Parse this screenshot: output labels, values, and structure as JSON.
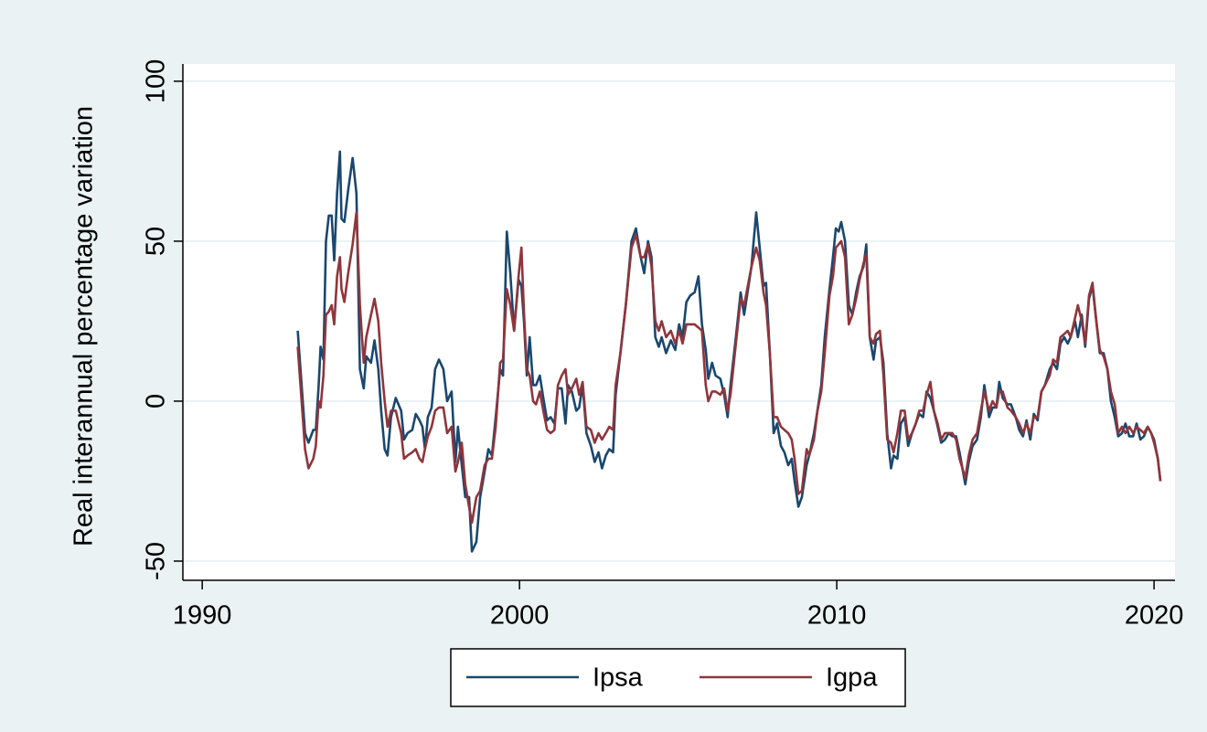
{
  "chart_data": {
    "type": "line",
    "y_label": "Real interannual percentage variation",
    "x": [
      1993.01,
      1993.24,
      1993.35,
      1993.5,
      1993.58,
      1993.67,
      1993.73,
      1993.82,
      1993.9,
      1993.99,
      1994.08,
      1994.16,
      1994.25,
      1994.34,
      1994.39,
      1994.48,
      1994.6,
      1994.74,
      1994.86,
      1994.97,
      1995.09,
      1995.17,
      1995.32,
      1995.43,
      1995.55,
      1995.64,
      1995.75,
      1995.84,
      1995.95,
      1996.1,
      1996.27,
      1996.36,
      1996.47,
      1996.62,
      1996.73,
      1996.85,
      1996.94,
      1997.02,
      1997.11,
      1997.23,
      1997.34,
      1997.46,
      1997.6,
      1997.72,
      1997.86,
      1997.98,
      1998.06,
      1998.18,
      1998.29,
      1998.41,
      1998.5,
      1998.64,
      1998.76,
      1998.9,
      1999.02,
      1999.13,
      1999.25,
      1999.39,
      1999.48,
      1999.6,
      1999.71,
      1999.83,
      1999.97,
      2000.06,
      2000.14,
      2000.23,
      2000.32,
      2000.43,
      2000.52,
      2000.64,
      2000.75,
      2000.87,
      2000.98,
      2001.1,
      2001.21,
      2001.33,
      2001.45,
      2001.53,
      2001.65,
      2001.79,
      2001.88,
      2001.99,
      2002.11,
      2002.25,
      2002.37,
      2002.49,
      2002.6,
      2002.72,
      2002.83,
      2002.95,
      2003.03,
      2003.18,
      2003.35,
      2003.53,
      2003.67,
      2003.82,
      2003.93,
      2004.05,
      2004.16,
      2004.28,
      2004.39,
      2004.48,
      2004.62,
      2004.77,
      2004.91,
      2005.03,
      2005.14,
      2005.26,
      2005.38,
      2005.52,
      2005.64,
      2005.75,
      2005.87,
      2005.95,
      2006.07,
      2006.18,
      2006.33,
      2006.45,
      2006.56,
      2006.65,
      2006.82,
      2006.97,
      2007.08,
      2007.31,
      2007.46,
      2007.57,
      2007.69,
      2007.77,
      2007.89,
      2008.01,
      2008.12,
      2008.24,
      2008.35,
      2008.47,
      2008.58,
      2008.67,
      2008.79,
      2008.9,
      2009.05,
      2009.13,
      2009.28,
      2009.39,
      2009.51,
      2009.62,
      2009.77,
      2009.88,
      2009.97,
      2010.06,
      2010.14,
      2010.26,
      2010.38,
      2010.49,
      2010.61,
      2010.72,
      2010.84,
      2010.93,
      2011.04,
      2011.16,
      2011.24,
      2011.36,
      2011.47,
      2011.59,
      2011.71,
      2011.79,
      2011.91,
      2012.02,
      2012.14,
      2012.25,
      2012.37,
      2012.49,
      2012.6,
      2012.72,
      2012.83,
      2012.95,
      2013.06,
      2013.18,
      2013.29,
      2013.41,
      2013.53,
      2013.64,
      2013.76,
      2013.87,
      2014.05,
      2014.16,
      2014.28,
      2014.42,
      2014.54,
      2014.65,
      2014.8,
      2014.91,
      2015.03,
      2015.12,
      2015.23,
      2015.38,
      2015.49,
      2015.64,
      2015.75,
      2015.87,
      2015.98,
      2016.1,
      2016.21,
      2016.33,
      2016.45,
      2016.56,
      2016.71,
      2016.82,
      2016.94,
      2017.05,
      2017.17,
      2017.28,
      2017.37,
      2017.51,
      2017.6,
      2017.72,
      2017.83,
      2017.95,
      2018.06,
      2018.18,
      2018.29,
      2018.41,
      2018.53,
      2018.64,
      2018.76,
      2018.87,
      2018.99,
      2019.1,
      2019.22,
      2019.34,
      2019.45,
      2019.57,
      2019.68,
      2019.8,
      2019.91,
      2020.0,
      2020.12,
      2020.2
    ],
    "series": [
      {
        "name": "Ipsa",
        "color": "#1a476f",
        "values": [
          22,
          -10,
          -13,
          -9,
          -9,
          5,
          17,
          13,
          50,
          58,
          58,
          44,
          65,
          78,
          57,
          56,
          66,
          76,
          65,
          10,
          4,
          14,
          12,
          19,
          10,
          -3,
          -15,
          -17,
          -5,
          1,
          -3,
          -12,
          -10,
          -9,
          -4,
          -6,
          -8,
          -15,
          -5,
          -2,
          10,
          13,
          10,
          0,
          3,
          -19,
          -8,
          -20,
          -30,
          -30,
          -47,
          -44,
          -30,
          -22,
          -15,
          -17,
          -5,
          10,
          8,
          53,
          40,
          22,
          38,
          36,
          25,
          8,
          20,
          5,
          5,
          8,
          1,
          -6,
          -5,
          -7,
          4,
          4,
          -7,
          5,
          3,
          -3,
          -2,
          5,
          -10,
          -14,
          -19,
          -16,
          -21,
          -17,
          -15,
          -16,
          2,
          15,
          30,
          50,
          54,
          45,
          40,
          50,
          45,
          20,
          17,
          20,
          15,
          19,
          16,
          24,
          20,
          31,
          33,
          34,
          39,
          24,
          16,
          7,
          12,
          8,
          7,
          2,
          -5,
          5,
          20,
          34,
          27,
          42,
          59,
          48,
          36,
          37,
          15,
          -10,
          -7,
          -14,
          -16,
          -20,
          -18,
          -25,
          -33,
          -30,
          -20,
          -17,
          -10,
          -3,
          5,
          20,
          35,
          45,
          54,
          53,
          56,
          50,
          30,
          27,
          34,
          39,
          42,
          49,
          20,
          13,
          19,
          20,
          12,
          -10,
          -21,
          -17,
          -18,
          -7,
          -5,
          -14,
          -10,
          -7,
          -4,
          -5,
          3,
          1,
          -3,
          -8,
          -13,
          -12,
          -10,
          -11,
          -11,
          -16,
          -26,
          -19,
          -14,
          -12,
          -5,
          5,
          -5,
          -2,
          -2,
          6,
          1,
          -1,
          -1,
          -5,
          -9,
          -11,
          -6,
          -12,
          -4,
          -6,
          3,
          5,
          10,
          12,
          10,
          18,
          20,
          18,
          20,
          25,
          20,
          27,
          17,
          32,
          36,
          25,
          15,
          15,
          10,
          0,
          -5,
          -11,
          -10,
          -7,
          -11,
          -11,
          -7,
          -12,
          -11,
          -8,
          -10,
          -12,
          -18,
          -25
        ]
      },
      {
        "name": "Igpa",
        "color": "#90353b",
        "values": [
          17,
          -15,
          -21,
          -18,
          -14,
          0,
          -2,
          8,
          27,
          28,
          30,
          24,
          39,
          45,
          35,
          31,
          40,
          49,
          59,
          30,
          12,
          20,
          27,
          32,
          25,
          12,
          0,
          -8,
          -3,
          -3,
          -10,
          -18,
          -17,
          -16,
          -15,
          -18,
          -19,
          -15,
          -11,
          -8,
          -3,
          -2,
          -2,
          -10,
          -8,
          -22,
          -19,
          -13,
          -26,
          -33,
          -38,
          -30,
          -28,
          -20,
          -18,
          -18,
          -8,
          12,
          13,
          35,
          30,
          22,
          39,
          48,
          28,
          10,
          8,
          0,
          -1,
          3,
          -3,
          -9,
          -10,
          -9,
          5,
          8,
          10,
          2,
          4,
          7,
          2,
          6,
          -8,
          -9,
          -13,
          -10,
          -12,
          -10,
          -8,
          -9,
          5,
          15,
          30,
          48,
          52,
          45,
          45,
          49,
          42,
          25,
          22,
          25,
          20,
          22,
          18,
          22,
          18,
          24,
          24,
          24,
          23,
          22,
          5,
          0,
          3,
          3,
          2,
          4,
          -3,
          2,
          18,
          32,
          30,
          42,
          48,
          44,
          34,
          30,
          15,
          -5,
          -5,
          -8,
          -9,
          -10,
          -12,
          -18,
          -29,
          -28,
          -15,
          -17,
          -12,
          -3,
          3,
          15,
          33,
          39,
          48,
          49,
          50,
          45,
          24,
          27,
          32,
          38,
          43,
          46,
          20,
          18,
          21,
          22,
          8,
          -12,
          -13,
          -16,
          -10,
          -3,
          -3,
          -12,
          -10,
          -7,
          -3,
          -3,
          2,
          6,
          -3,
          -7,
          -12,
          -10,
          -10,
          -10,
          -12,
          -18,
          -24,
          -17,
          -12,
          -10,
          -3,
          3,
          -3,
          0,
          -2,
          3,
          3,
          -2,
          -3,
          -5,
          -7,
          -10,
          -7,
          -10,
          -5,
          -5,
          3,
          5,
          8,
          13,
          12,
          20,
          21,
          22,
          20,
          26,
          30,
          25,
          18,
          33,
          37,
          25,
          16,
          14,
          10,
          3,
          -1,
          -10,
          -8,
          -10,
          -8,
          -10,
          -8,
          -9,
          -10,
          -8,
          -10,
          -13,
          -18,
          -25
        ]
      }
    ],
    "xlim": [
      1989.39,
      2020.66
    ],
    "xticks": [
      1990,
      2000,
      2010,
      2020
    ],
    "ylim": [
      -56,
      105.4
    ],
    "yticks": [
      -50,
      0,
      50,
      100
    ],
    "grid": true,
    "legend": "bottom"
  }
}
